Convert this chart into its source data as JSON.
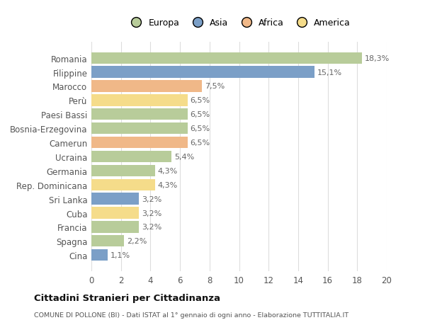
{
  "categories": [
    "Cina",
    "Spagna",
    "Francia",
    "Cuba",
    "Sri Lanka",
    "Rep. Dominicana",
    "Germania",
    "Ucraina",
    "Camerun",
    "Bosnia-Erzegovina",
    "Paesi Bassi",
    "Perù",
    "Marocco",
    "Filippine",
    "Romania"
  ],
  "values": [
    1.1,
    2.2,
    3.2,
    3.2,
    3.2,
    4.3,
    4.3,
    5.4,
    6.5,
    6.5,
    6.5,
    6.5,
    7.5,
    15.1,
    18.3
  ],
  "labels": [
    "1,1%",
    "2,2%",
    "3,2%",
    "3,2%",
    "3,2%",
    "4,3%",
    "4,3%",
    "5,4%",
    "6,5%",
    "6,5%",
    "6,5%",
    "6,5%",
    "7,5%",
    "15,1%",
    "18,3%"
  ],
  "colors": [
    "#7b9fc7",
    "#b8cc9a",
    "#b8cc9a",
    "#f5dc8a",
    "#7b9fc7",
    "#f5dc8a",
    "#b8cc9a",
    "#b8cc9a",
    "#f0b888",
    "#b8cc9a",
    "#b8cc9a",
    "#f5dc8a",
    "#f0b888",
    "#7b9fc7",
    "#b8cc9a"
  ],
  "legend_labels": [
    "Europa",
    "Asia",
    "Africa",
    "America"
  ],
  "legend_colors": [
    "#b8cc9a",
    "#7b9fc7",
    "#f0b888",
    "#f5dc8a"
  ],
  "title": "Cittadini Stranieri per Cittadinanza",
  "subtitle": "COMUNE DI POLLONE (BI) - Dati ISTAT al 1° gennaio di ogni anno - Elaborazione TUTTITALIA.IT",
  "xlim": [
    0,
    20
  ],
  "xticks": [
    0,
    2,
    4,
    6,
    8,
    10,
    12,
    14,
    16,
    18,
    20
  ],
  "plot_bg_color": "#ffffff",
  "fig_bg_color": "#ffffff",
  "bar_height": 0.82,
  "label_fontsize": 8,
  "tick_fontsize": 8.5,
  "grid_color": "#dddddd",
  "text_color": "#555555",
  "label_color": "#666666"
}
